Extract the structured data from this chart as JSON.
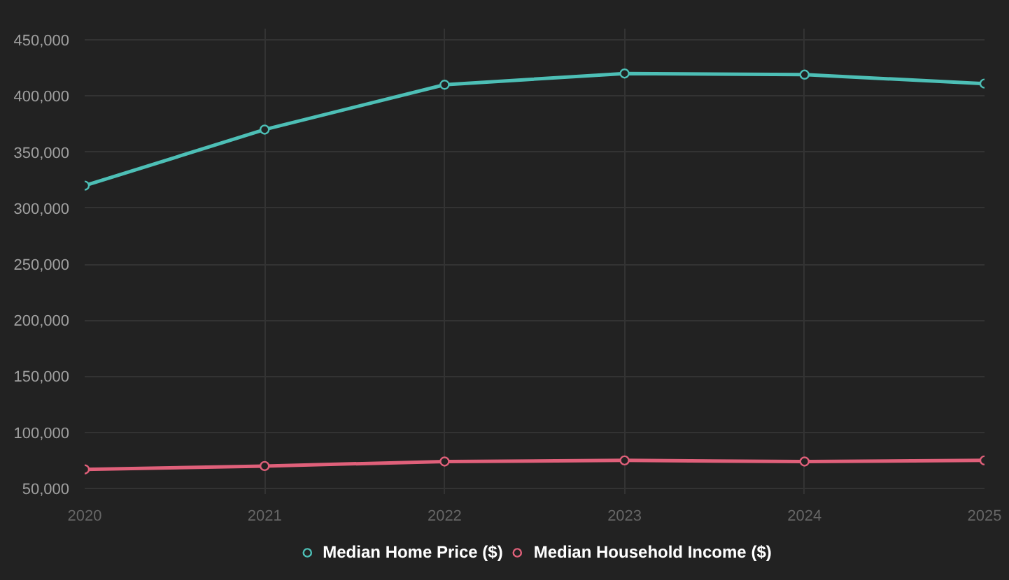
{
  "chart_data": {
    "type": "line",
    "x": [
      2020,
      2021,
      2022,
      2023,
      2024,
      2025
    ],
    "series": [
      {
        "name": "Median Home Price ($)",
        "color": "#4dbfb6",
        "values": [
          320000,
          370000,
          410000,
          420000,
          419000,
          411000
        ]
      },
      {
        "name": "Median Household Income ($)",
        "color": "#e0607a",
        "values": [
          67000,
          70000,
          74000,
          75000,
          74000,
          75000
        ]
      }
    ],
    "xlim": [
      2020,
      2025
    ],
    "xticks": [
      {
        "value": 2020,
        "label": "2020"
      },
      {
        "value": 2021,
        "label": "2021"
      },
      {
        "value": 2022,
        "label": "2022"
      },
      {
        "value": 2023,
        "label": "2023"
      },
      {
        "value": 2024,
        "label": "2024"
      },
      {
        "value": 2025,
        "label": "2025"
      }
    ],
    "ylim": [
      45000,
      460000
    ],
    "yticks": [
      {
        "value": 50000,
        "label": "50,000"
      },
      {
        "value": 100000,
        "label": "100,000"
      },
      {
        "value": 150000,
        "label": "150,000"
      },
      {
        "value": 200000,
        "label": "200,000"
      },
      {
        "value": 250000,
        "label": "250,000"
      },
      {
        "value": 300000,
        "label": "300,000"
      },
      {
        "value": 350000,
        "label": "350,000"
      },
      {
        "value": 400000,
        "label": "400,000"
      },
      {
        "value": 450000,
        "label": "450,000"
      }
    ],
    "grid": true,
    "legend": "bottom",
    "marker": "circle",
    "line_style": "solid"
  }
}
